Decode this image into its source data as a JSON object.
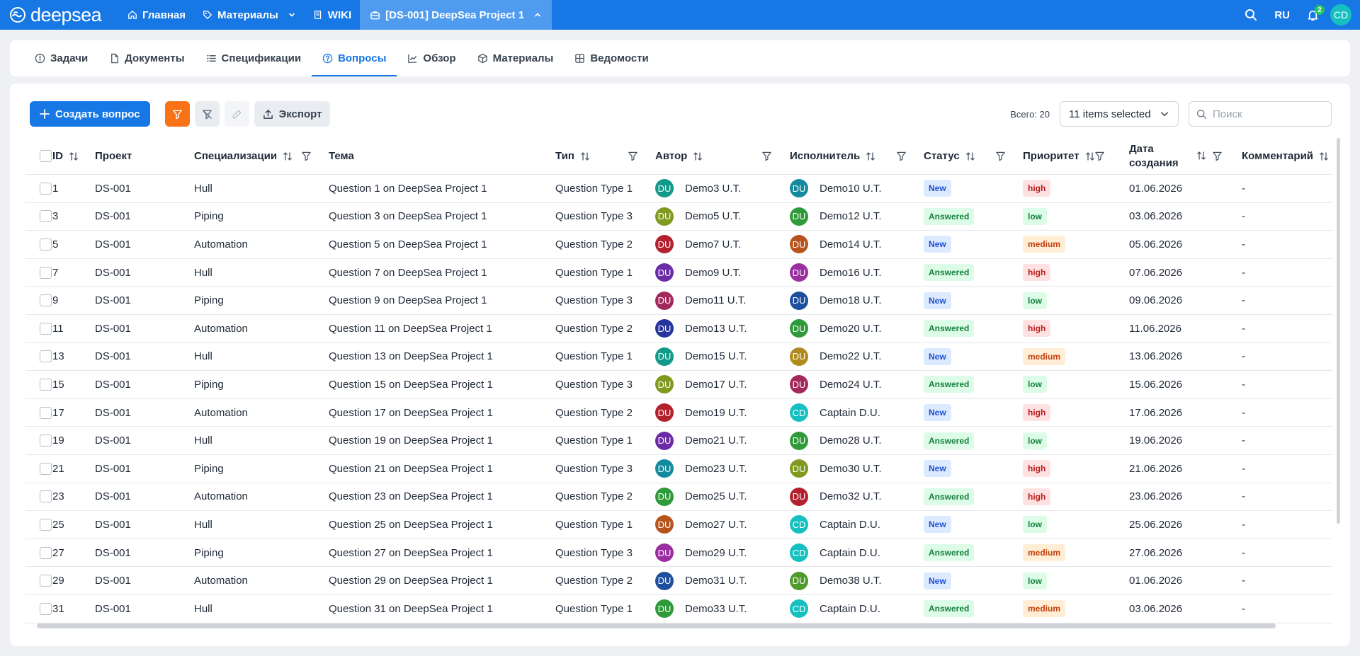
{
  "app": {
    "brand": "deepsea"
  },
  "topnav": {
    "items": [
      {
        "label": "Главная"
      },
      {
        "label": "Материалы"
      },
      {
        "label": "WIKI"
      },
      {
        "label": "[DS-001] DeepSea Project 1"
      }
    ],
    "lang": "RU",
    "notif_count": "2",
    "user_initials": "CD"
  },
  "tabs": [
    {
      "label": "Задачи"
    },
    {
      "label": "Документы"
    },
    {
      "label": "Спецификации"
    },
    {
      "label": "Вопросы",
      "active": true
    },
    {
      "label": "Обзор"
    },
    {
      "label": "Материалы"
    },
    {
      "label": "Ведомости"
    }
  ],
  "toolbar": {
    "create_label": "Создать вопрос",
    "export_label": "Экспорт",
    "total_label": "Всего: 20",
    "columns_select": "11 items selected",
    "search_placeholder": "Поиск"
  },
  "colors": {
    "accent": "#1677e5",
    "orange": "#f97316",
    "avatar": {
      "Demo3": "#119a8a",
      "Demo5": "#7f9a1f",
      "Demo7": "#b3202e",
      "Demo9": "#6b2ca6",
      "Demo11": "#a3285c",
      "Demo13": "#26349c",
      "Demo15": "#119a8a",
      "Demo17": "#7f9a1f",
      "Demo19": "#b3202e",
      "Demo21": "#6b2ca6",
      "Demo23": "#138a9e",
      "Demo25": "#2f9a3a",
      "Demo27": "#b7541d",
      "Demo29": "#9b2ea0",
      "Demo31": "#1e4f9c",
      "Demo33": "#2f9a3a",
      "Demo10": "#138a9e",
      "Demo12": "#2f9a3a",
      "Demo14": "#b7541d",
      "Demo16": "#9b2ea0",
      "Demo18": "#1e4f9c",
      "Demo20": "#2f9a3a",
      "Demo22": "#b08a1e",
      "Demo24": "#a3285c",
      "Demo28": "#2f9a3a",
      "Demo30": "#7f9a1f",
      "Demo32": "#b3202e",
      "Demo38": "#4f9a2a",
      "Captain": "#16c0c0"
    }
  },
  "table": {
    "headers": {
      "id": "ID",
      "project": "Проект",
      "spec": "Специализации",
      "topic": "Тема",
      "type": "Тип",
      "author": "Автор",
      "assignee": "Исполнитель",
      "status": "Статус",
      "priority": "Приоритет",
      "created": "Дата создания",
      "comment": "Комментарий"
    },
    "rows": [
      {
        "id": "1",
        "project": "DS-001",
        "spec": "Hull",
        "topic": "Question 1 on DeepSea Project 1",
        "type": "Question Type 1",
        "author": "Demo3 U.T.",
        "author_key": "Demo3",
        "assignee": "Demo10 U.T.",
        "assignee_key": "Demo10",
        "status": "New",
        "priority": "high",
        "created": "01.06.2026",
        "comment": "-"
      },
      {
        "id": "3",
        "project": "DS-001",
        "spec": "Piping",
        "topic": "Question 3 on DeepSea Project 1",
        "type": "Question Type 3",
        "author": "Demo5 U.T.",
        "author_key": "Demo5",
        "assignee": "Demo12 U.T.",
        "assignee_key": "Demo12",
        "status": "Answered",
        "priority": "low",
        "created": "03.06.2026",
        "comment": "-"
      },
      {
        "id": "5",
        "project": "DS-001",
        "spec": "Automation",
        "topic": "Question 5 on DeepSea Project 1",
        "type": "Question Type 2",
        "author": "Demo7 U.T.",
        "author_key": "Demo7",
        "assignee": "Demo14 U.T.",
        "assignee_key": "Demo14",
        "status": "New",
        "priority": "medium",
        "created": "05.06.2026",
        "comment": "-"
      },
      {
        "id": "7",
        "project": "DS-001",
        "spec": "Hull",
        "topic": "Question 7 on DeepSea Project 1",
        "type": "Question Type 1",
        "author": "Demo9 U.T.",
        "author_key": "Demo9",
        "assignee": "Demo16 U.T.",
        "assignee_key": "Demo16",
        "status": "Answered",
        "priority": "high",
        "created": "07.06.2026",
        "comment": "-"
      },
      {
        "id": "9",
        "project": "DS-001",
        "spec": "Piping",
        "topic": "Question 9 on DeepSea Project 1",
        "type": "Question Type 3",
        "author": "Demo11 U.T.",
        "author_key": "Demo11",
        "assignee": "Demo18 U.T.",
        "assignee_key": "Demo18",
        "status": "New",
        "priority": "low",
        "created": "09.06.2026",
        "comment": "-"
      },
      {
        "id": "11",
        "project": "DS-001",
        "spec": "Automation",
        "topic": "Question 11 on DeepSea Project 1",
        "type": "Question Type 2",
        "author": "Demo13 U.T.",
        "author_key": "Demo13",
        "assignee": "Demo20 U.T.",
        "assignee_key": "Demo20",
        "status": "Answered",
        "priority": "high",
        "created": "11.06.2026",
        "comment": "-"
      },
      {
        "id": "13",
        "project": "DS-001",
        "spec": "Hull",
        "topic": "Question 13 on DeepSea Project 1",
        "type": "Question Type 1",
        "author": "Demo15 U.T.",
        "author_key": "Demo15",
        "assignee": "Demo22 U.T.",
        "assignee_key": "Demo22",
        "status": "New",
        "priority": "medium",
        "created": "13.06.2026",
        "comment": "-"
      },
      {
        "id": "15",
        "project": "DS-001",
        "spec": "Piping",
        "topic": "Question 15 on DeepSea Project 1",
        "type": "Question Type 3",
        "author": "Demo17 U.T.",
        "author_key": "Demo17",
        "assignee": "Demo24 U.T.",
        "assignee_key": "Demo24",
        "status": "Answered",
        "priority": "low",
        "created": "15.06.2026",
        "comment": "-"
      },
      {
        "id": "17",
        "project": "DS-001",
        "spec": "Automation",
        "topic": "Question 17 on DeepSea Project 1",
        "type": "Question Type 2",
        "author": "Demo19 U.T.",
        "author_key": "Demo19",
        "assignee": "Captain D.U.",
        "assignee_key": "Captain",
        "status": "New",
        "priority": "high",
        "created": "17.06.2026",
        "comment": "-"
      },
      {
        "id": "19",
        "project": "DS-001",
        "spec": "Hull",
        "topic": "Question 19 on DeepSea Project 1",
        "type": "Question Type 1",
        "author": "Demo21 U.T.",
        "author_key": "Demo21",
        "assignee": "Demo28 U.T.",
        "assignee_key": "Demo28",
        "status": "Answered",
        "priority": "low",
        "created": "19.06.2026",
        "comment": "-"
      },
      {
        "id": "21",
        "project": "DS-001",
        "spec": "Piping",
        "topic": "Question 21 on DeepSea Project 1",
        "type": "Question Type 3",
        "author": "Demo23 U.T.",
        "author_key": "Demo23",
        "assignee": "Demo30 U.T.",
        "assignee_key": "Demo30",
        "status": "New",
        "priority": "high",
        "created": "21.06.2026",
        "comment": "-"
      },
      {
        "id": "23",
        "project": "DS-001",
        "spec": "Automation",
        "topic": "Question 23 on DeepSea Project 1",
        "type": "Question Type 2",
        "author": "Demo25 U.T.",
        "author_key": "Demo25",
        "assignee": "Demo32 U.T.",
        "assignee_key": "Demo32",
        "status": "Answered",
        "priority": "high",
        "created": "23.06.2026",
        "comment": "-"
      },
      {
        "id": "25",
        "project": "DS-001",
        "spec": "Hull",
        "topic": "Question 25 on DeepSea Project 1",
        "type": "Question Type 1",
        "author": "Demo27 U.T.",
        "author_key": "Demo27",
        "assignee": "Captain D.U.",
        "assignee_key": "Captain",
        "status": "New",
        "priority": "low",
        "created": "25.06.2026",
        "comment": "-"
      },
      {
        "id": "27",
        "project": "DS-001",
        "spec": "Piping",
        "topic": "Question 27 on DeepSea Project 1",
        "type": "Question Type 3",
        "author": "Demo29 U.T.",
        "author_key": "Demo29",
        "assignee": "Captain D.U.",
        "assignee_key": "Captain",
        "status": "Answered",
        "priority": "medium",
        "created": "27.06.2026",
        "comment": "-"
      },
      {
        "id": "29",
        "project": "DS-001",
        "spec": "Automation",
        "topic": "Question 29 on DeepSea Project 1",
        "type": "Question Type 2",
        "author": "Demo31 U.T.",
        "author_key": "Demo31",
        "assignee": "Demo38 U.T.",
        "assignee_key": "Demo38",
        "status": "New",
        "priority": "low",
        "created": "01.06.2026",
        "comment": "-"
      },
      {
        "id": "31",
        "project": "DS-001",
        "spec": "Hull",
        "topic": "Question 31 on DeepSea Project 1",
        "type": "Question Type 1",
        "author": "Demo33 U.T.",
        "author_key": "Demo33",
        "assignee": "Captain D.U.",
        "assignee_key": "Captain",
        "status": "Answered",
        "priority": "medium",
        "created": "03.06.2026",
        "comment": "-"
      }
    ]
  }
}
